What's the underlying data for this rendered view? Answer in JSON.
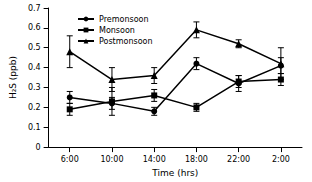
{
  "chart_data": {
    "type": "line",
    "x_label": "Time (hrs)",
    "y_label": "H₂S (ppb)",
    "categories": [
      "6:00",
      "10:00",
      "14:00",
      "18:00",
      "22:00",
      "2:00"
    ],
    "series": [
      {
        "name": "Premonsoon",
        "color": "#000000",
        "marker": "circle",
        "values": [
          0.25,
          0.22,
          0.18,
          0.42,
          0.32,
          0.41
        ],
        "errors": [
          0.03,
          0.03,
          0.02,
          0.03,
          0.04,
          0.04
        ]
      },
      {
        "name": "Monsoon",
        "color": "#000000",
        "marker": "square",
        "values": [
          0.19,
          0.23,
          0.26,
          0.2,
          0.33,
          0.34
        ],
        "errors": [
          0.03,
          0.07,
          0.03,
          0.02,
          0.03,
          0.03
        ]
      },
      {
        "name": "Postmonsoon",
        "color": "#000000",
        "marker": "triangle",
        "values": [
          0.48,
          0.34,
          0.36,
          0.59,
          0.52,
          0.42
        ],
        "errors": [
          0.08,
          0.06,
          0.04,
          0.04,
          0.02,
          0.08
        ]
      }
    ],
    "ylim": [
      0,
      0.7
    ],
    "yticks": [
      0,
      0.1,
      0.2,
      0.3,
      0.4,
      0.5,
      0.6,
      0.7
    ],
    "grid": false,
    "legend": "upper left"
  }
}
